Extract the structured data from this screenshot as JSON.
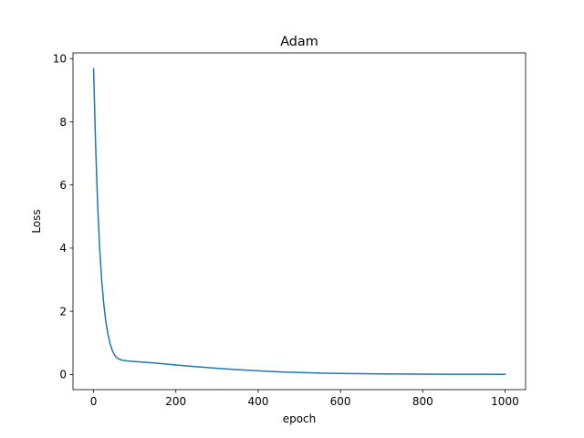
{
  "chart_data": {
    "type": "line",
    "title": "Adam",
    "xlabel": "epoch",
    "ylabel": "Loss",
    "xlim": [
      -50,
      1050
    ],
    "ylim": [
      -0.48,
      10.18
    ],
    "xticks": [
      0,
      200,
      400,
      600,
      800,
      1000
    ],
    "yticks": [
      0,
      2,
      4,
      6,
      8,
      10
    ],
    "grid": false,
    "series": [
      {
        "color": "#1f77b4",
        "x": [
          0,
          5,
          10,
          15,
          20,
          25,
          30,
          35,
          40,
          45,
          50,
          55,
          60,
          65,
          70,
          75,
          80,
          85,
          90,
          100,
          120,
          150,
          200,
          250,
          300,
          350,
          400,
          450,
          500,
          550,
          600,
          650,
          700,
          750,
          800,
          850,
          900,
          950,
          1000
        ],
        "y": [
          9.68,
          7.25,
          5.35,
          3.95,
          2.93,
          2.2,
          1.66,
          1.27,
          0.98,
          0.78,
          0.64,
          0.55,
          0.5,
          0.47,
          0.45,
          0.44,
          0.43,
          0.425,
          0.42,
          0.41,
          0.39,
          0.36,
          0.3,
          0.245,
          0.195,
          0.152,
          0.115,
          0.085,
          0.062,
          0.045,
          0.033,
          0.024,
          0.018,
          0.013,
          0.01,
          0.008,
          0.007,
          0.006,
          0.005
        ]
      }
    ]
  }
}
